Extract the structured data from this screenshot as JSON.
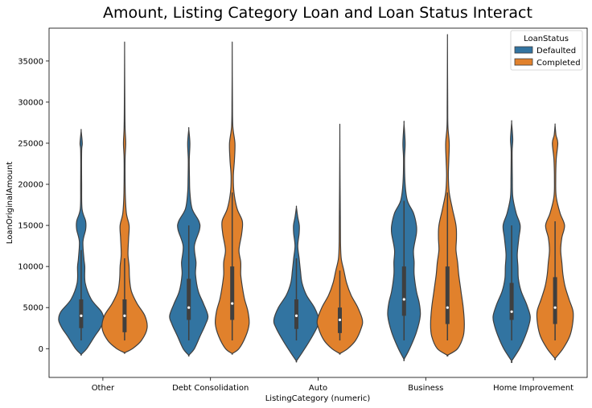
{
  "chart_data": {
    "type": "violin",
    "title": "Amount, Listing Category Loan and Loan Status Interact",
    "xlabel": "ListingCategory (numeric)",
    "ylabel": "LoanOriginalAmount",
    "ylim": [
      -3500,
      39000
    ],
    "yticks": [
      0,
      5000,
      10000,
      15000,
      20000,
      25000,
      30000,
      35000
    ],
    "categories": [
      "Other",
      "Debt Consolidation",
      "Auto",
      "Business",
      "Home Improvement"
    ],
    "legend": {
      "title": "LoanStatus",
      "position": "top-right"
    },
    "series": [
      {
        "name": "Defaulted",
        "color": "#3274a1",
        "violins": [
          {
            "min": -700,
            "max": 26500,
            "q1": 2500,
            "median": 4000,
            "q3": 6000,
            "wlo": 1000,
            "whi": 12000,
            "profile": [
              [
                -700,
                0
              ],
              [
                0,
                0.25
              ],
              [
                1500,
                0.6
              ],
              [
                2500,
                0.85
              ],
              [
                3500,
                1.0
              ],
              [
                4500,
                0.9
              ],
              [
                6000,
                0.45
              ],
              [
                8000,
                0.18
              ],
              [
                10000,
                0.16
              ],
              [
                11000,
                0.12
              ],
              [
                13000,
                0.08
              ],
              [
                14500,
                0.2
              ],
              [
                15500,
                0.2
              ],
              [
                17000,
                0.04
              ],
              [
                20000,
                0.02
              ],
              [
                24000,
                0.02
              ],
              [
                25000,
                0.05
              ],
              [
                26500,
                0.0
              ]
            ]
          },
          {
            "min": -800,
            "max": 26700,
            "q1": 3500,
            "median": 5000,
            "q3": 8500,
            "wlo": 1000,
            "whi": 15000,
            "profile": [
              [
                -800,
                0
              ],
              [
                0,
                0.25
              ],
              [
                1500,
                0.5
              ],
              [
                3000,
                0.75
              ],
              [
                4000,
                0.85
              ],
              [
                5500,
                0.65
              ],
              [
                7000,
                0.42
              ],
              [
                9000,
                0.3
              ],
              [
                10500,
                0.32
              ],
              [
                12500,
                0.25
              ],
              [
                14500,
                0.48
              ],
              [
                15500,
                0.45
              ],
              [
                17000,
                0.15
              ],
              [
                19000,
                0.05
              ],
              [
                21000,
                0.03
              ],
              [
                23000,
                0.02
              ],
              [
                25000,
                0.05
              ],
              [
                26700,
                0.0
              ]
            ]
          },
          {
            "min": -1500,
            "max": 17200,
            "q1": 2400,
            "median": 4000,
            "q3": 6000,
            "wlo": 1000,
            "whi": 11000,
            "profile": [
              [
                -1500,
                0
              ],
              [
                -500,
                0.25
              ],
              [
                1000,
                0.6
              ],
              [
                2500,
                0.9
              ],
              [
                3500,
                1.0
              ],
              [
                5000,
                0.8
              ],
              [
                6500,
                0.45
              ],
              [
                8000,
                0.25
              ],
              [
                9500,
                0.18
              ],
              [
                11000,
                0.12
              ],
              [
                12500,
                0.06
              ],
              [
                14000,
                0.12
              ],
              [
                15000,
                0.13
              ],
              [
                16000,
                0.06
              ],
              [
                17200,
                0.0
              ]
            ]
          },
          {
            "min": -1300,
            "max": 27400,
            "q1": 4000,
            "median": 6000,
            "q3": 10000,
            "wlo": 1000,
            "whi": 18000,
            "profile": [
              [
                -1300,
                0
              ],
              [
                0,
                0.25
              ],
              [
                2000,
                0.55
              ],
              [
                4000,
                0.72
              ],
              [
                5500,
                0.68
              ],
              [
                7000,
                0.55
              ],
              [
                9000,
                0.45
              ],
              [
                10500,
                0.45
              ],
              [
                12000,
                0.42
              ],
              [
                14000,
                0.55
              ],
              [
                15000,
                0.55
              ],
              [
                16500,
                0.42
              ],
              [
                18000,
                0.15
              ],
              [
                20000,
                0.05
              ],
              [
                23000,
                0.02
              ],
              [
                25000,
                0.05
              ],
              [
                27400,
                0.0
              ]
            ]
          },
          {
            "min": -1500,
            "max": 27500,
            "q1": 3500,
            "median": 4500,
            "q3": 8000,
            "wlo": 1000,
            "whi": 15000,
            "profile": [
              [
                -1500,
                0
              ],
              [
                0,
                0.35
              ],
              [
                1500,
                0.6
              ],
              [
                3000,
                0.78
              ],
              [
                4000,
                0.82
              ],
              [
                5500,
                0.65
              ],
              [
                7000,
                0.42
              ],
              [
                8500,
                0.3
              ],
              [
                10000,
                0.28
              ],
              [
                11500,
                0.25
              ],
              [
                13500,
                0.32
              ],
              [
                15000,
                0.38
              ],
              [
                16500,
                0.2
              ],
              [
                18500,
                0.05
              ],
              [
                21000,
                0.03
              ],
              [
                24000,
                0.02
              ],
              [
                25500,
                0.05
              ],
              [
                27500,
                0.0
              ]
            ]
          }
        ]
      },
      {
        "name": "Completed",
        "color": "#e1812c",
        "violins": [
          {
            "min": -500,
            "max": 36500,
            "q1": 2000,
            "median": 4000,
            "q3": 6000,
            "wlo": 1000,
            "whi": 11000,
            "profile": [
              [
                -500,
                0
              ],
              [
                0,
                0.35
              ],
              [
                1000,
                0.75
              ],
              [
                2500,
                1.0
              ],
              [
                4000,
                0.9
              ],
              [
                5500,
                0.55
              ],
              [
                7000,
                0.3
              ],
              [
                8500,
                0.22
              ],
              [
                10000,
                0.2
              ],
              [
                11500,
                0.15
              ],
              [
                13500,
                0.18
              ],
              [
                15000,
                0.2
              ],
              [
                16500,
                0.08
              ],
              [
                19000,
                0.03
              ],
              [
                23000,
                0.02
              ],
              [
                25000,
                0.05
              ],
              [
                27000,
                0.02
              ],
              [
                30000,
                0.01
              ],
              [
                36500,
                0.0
              ]
            ]
          },
          {
            "min": -600,
            "max": 36500,
            "q1": 3500,
            "median": 5500,
            "q3": 10000,
            "wlo": 1000,
            "whi": 19000,
            "profile": [
              [
                -600,
                0
              ],
              [
                0,
                0.3
              ],
              [
                1500,
                0.6
              ],
              [
                3000,
                0.75
              ],
              [
                4500,
                0.7
              ],
              [
                6000,
                0.55
              ],
              [
                7500,
                0.45
              ],
              [
                9000,
                0.38
              ],
              [
                10500,
                0.38
              ],
              [
                12000,
                0.3
              ],
              [
                14000,
                0.42
              ],
              [
                15500,
                0.45
              ],
              [
                17000,
                0.22
              ],
              [
                19000,
                0.08
              ],
              [
                21000,
                0.05
              ],
              [
                23000,
                0.1
              ],
              [
                25000,
                0.12
              ],
              [
                27000,
                0.03
              ],
              [
                30000,
                0.01
              ],
              [
                36500,
                0.0
              ]
            ]
          },
          {
            "min": -600,
            "max": 26500,
            "q1": 1900,
            "median": 3500,
            "q3": 5000,
            "wlo": 1000,
            "whi": 9500,
            "profile": [
              [
                -600,
                0
              ],
              [
                0,
                0.35
              ],
              [
                1000,
                0.7
              ],
              [
                2500,
                0.95
              ],
              [
                3500,
                1.0
              ],
              [
                5000,
                0.8
              ],
              [
                6500,
                0.5
              ],
              [
                8000,
                0.3
              ],
              [
                9500,
                0.18
              ],
              [
                11000,
                0.06
              ],
              [
                13000,
                0.03
              ],
              [
                16000,
                0.02
              ],
              [
                20000,
                0.01
              ],
              [
                26500,
                0.0
              ]
            ]
          },
          {
            "min": -800,
            "max": 37300,
            "q1": 3000,
            "median": 5000,
            "q3": 10000,
            "wlo": 1000,
            "whi": 19000,
            "profile": [
              [
                -800,
                0
              ],
              [
                0,
                0.45
              ],
              [
                1500,
                0.7
              ],
              [
                3000,
                0.75
              ],
              [
                5000,
                0.7
              ],
              [
                7000,
                0.6
              ],
              [
                9000,
                0.5
              ],
              [
                10500,
                0.45
              ],
              [
                12000,
                0.38
              ],
              [
                13500,
                0.4
              ],
              [
                15000,
                0.38
              ],
              [
                17000,
                0.22
              ],
              [
                19000,
                0.08
              ],
              [
                21000,
                0.04
              ],
              [
                23000,
                0.06
              ],
              [
                25000,
                0.08
              ],
              [
                27000,
                0.02
              ],
              [
                30000,
                0.01
              ],
              [
                37300,
                0.0
              ]
            ]
          },
          {
            "min": -1200,
            "max": 27200,
            "q1": 3000,
            "median": 5000,
            "q3": 8700,
            "wlo": 1000,
            "whi": 15500,
            "profile": [
              [
                -1200,
                0
              ],
              [
                0,
                0.35
              ],
              [
                1500,
                0.65
              ],
              [
                3000,
                0.78
              ],
              [
                4500,
                0.8
              ],
              [
                6000,
                0.62
              ],
              [
                7500,
                0.45
              ],
              [
                9000,
                0.35
              ],
              [
                10500,
                0.3
              ],
              [
                12000,
                0.25
              ],
              [
                13500,
                0.3
              ],
              [
                15000,
                0.42
              ],
              [
                16500,
                0.22
              ],
              [
                18500,
                0.05
              ],
              [
                20500,
                0.03
              ],
              [
                23000,
                0.05
              ],
              [
                25000,
                0.12
              ],
              [
                26000,
                0.04
              ],
              [
                27200,
                0.0
              ]
            ]
          }
        ]
      }
    ]
  }
}
